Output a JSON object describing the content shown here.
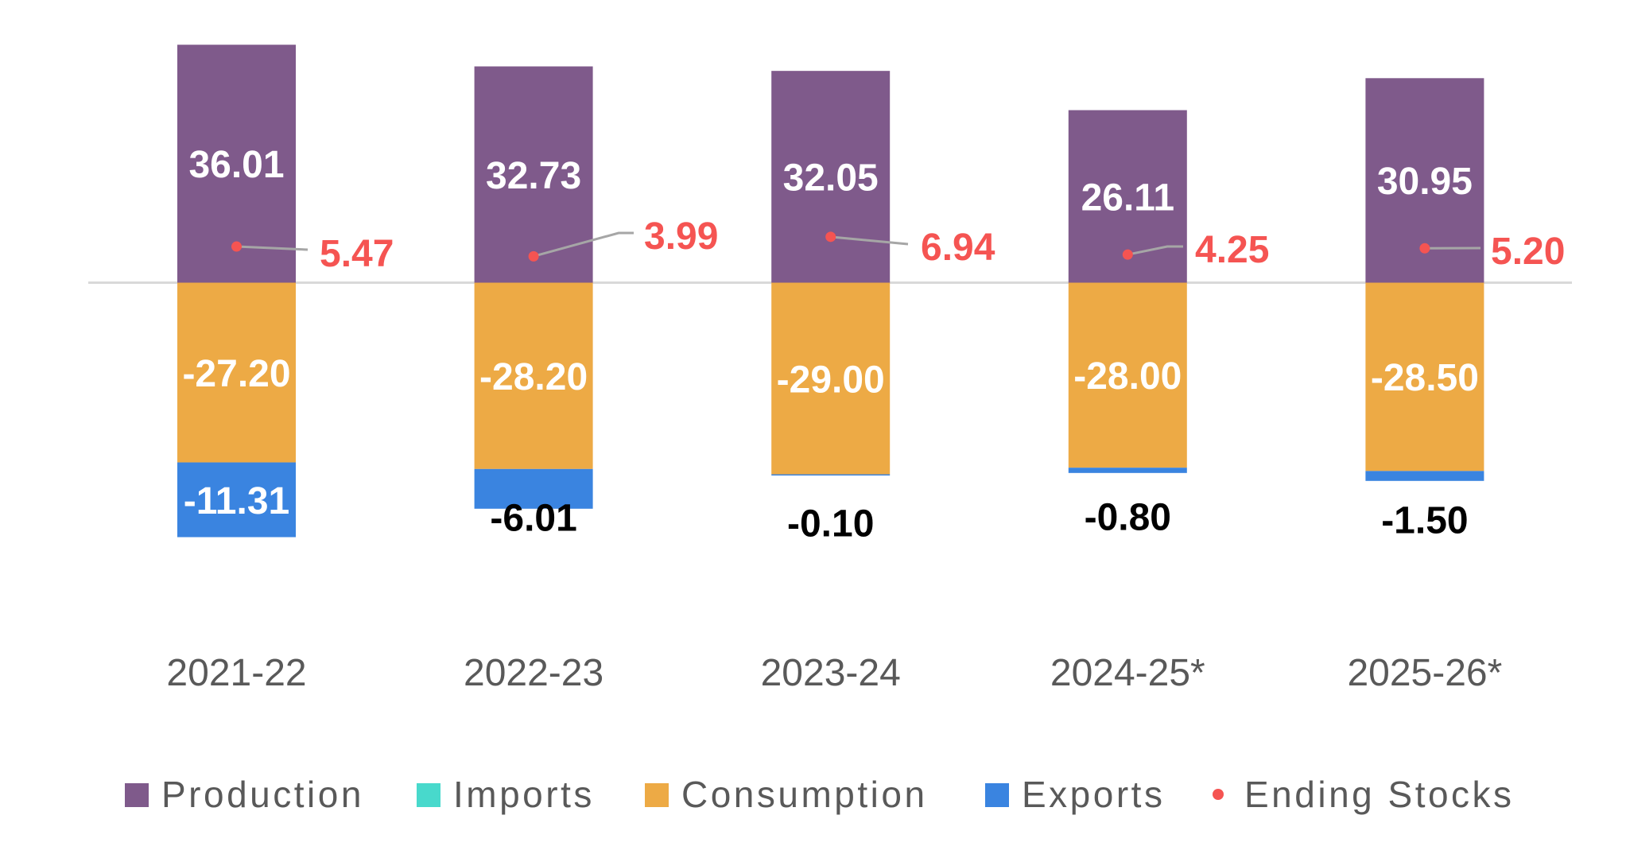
{
  "chart_data": {
    "type": "bar",
    "stacked": true,
    "title": "",
    "xlabel": "",
    "ylabel": "",
    "ylim": [
      -44,
      38
    ],
    "grid": false,
    "zero_line": true,
    "legend_position": "bottom",
    "categories": [
      "2021-22",
      "2022-23",
      "2023-24",
      "2024-25*",
      "2025-26*"
    ],
    "series": [
      {
        "name": "Production",
        "kind": "bar",
        "color": "#7F5A8B",
        "values": [
          36.01,
          32.73,
          32.05,
          26.11,
          30.95
        ],
        "labels": [
          "36.01",
          "32.73",
          "32.05",
          "26.11",
          "30.95"
        ]
      },
      {
        "name": "Imports",
        "kind": "bar",
        "color": "#48D9CC",
        "values": [
          0,
          0,
          0,
          0,
          0
        ],
        "labels": [
          "",
          "",
          "",
          "",
          ""
        ]
      },
      {
        "name": "Consumption",
        "kind": "bar",
        "color": "#EDAA45",
        "values": [
          -27.2,
          -28.2,
          -29.0,
          -28.0,
          -28.5
        ],
        "labels": [
          "-27.20",
          "-28.20",
          "-29.00",
          "-28.00",
          "-28.50"
        ]
      },
      {
        "name": "Exports",
        "kind": "bar",
        "color": "#3A84E0",
        "values": [
          -11.31,
          -6.01,
          -0.1,
          -0.8,
          -1.5
        ],
        "labels": [
          "-11.31",
          "-6.01",
          "-0.10",
          "-0.80",
          "-1.50"
        ]
      },
      {
        "name": "Ending Stocks",
        "kind": "point",
        "color": "#F55452",
        "values": [
          5.47,
          3.99,
          6.94,
          4.25,
          5.2
        ],
        "labels": [
          "5.47",
          "3.99",
          "6.94",
          "4.25",
          "5.20"
        ]
      }
    ],
    "colors": {
      "zero_line": "#D9D9D9",
      "leader_line": "#A6A6A6",
      "axis_text": "#595959",
      "inside_label": "#FFFFFF",
      "outside_label": "#000000"
    }
  }
}
